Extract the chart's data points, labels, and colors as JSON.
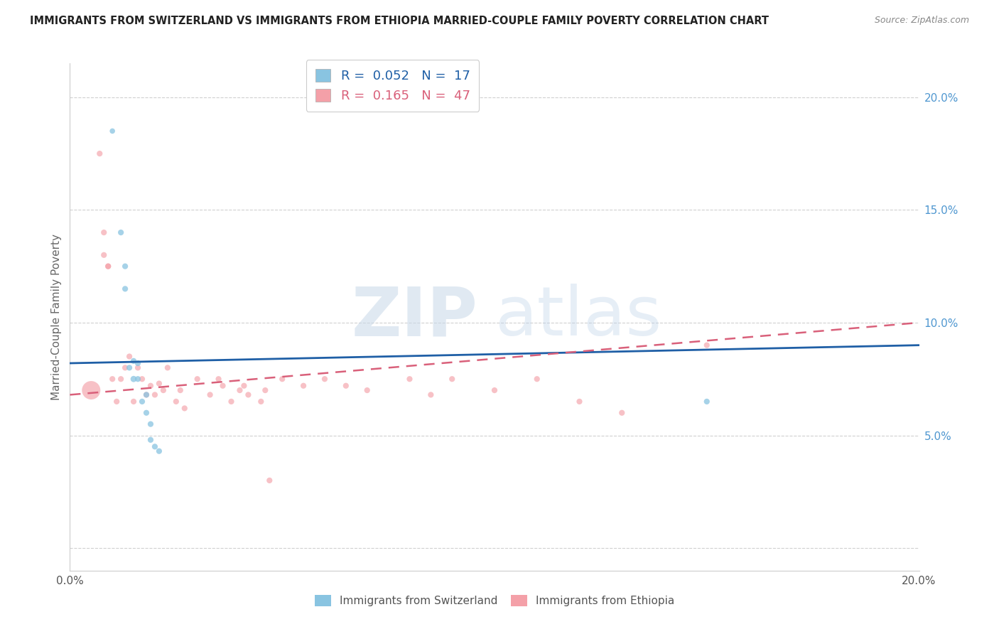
{
  "title": "IMMIGRANTS FROM SWITZERLAND VS IMMIGRANTS FROM ETHIOPIA MARRIED-COUPLE FAMILY POVERTY CORRELATION CHART",
  "source": "Source: ZipAtlas.com",
  "ylabel": "Married-Couple Family Poverty",
  "xlim": [
    0.0,
    0.2
  ],
  "ylim": [
    -0.01,
    0.215
  ],
  "color_swiss": "#89c4e1",
  "color_eth": "#f4a0a8",
  "color_swiss_line": "#1f5fa6",
  "color_eth_line": "#d9607a",
  "legend_swiss_R": "0.052",
  "legend_swiss_N": "17",
  "legend_eth_R": "0.165",
  "legend_eth_N": "47",
  "watermark_zip": "ZIP",
  "watermark_atlas": "atlas",
  "background_color": "#ffffff",
  "swiss_x": [
    0.01,
    0.012,
    0.013,
    0.013,
    0.014,
    0.015,
    0.015,
    0.016,
    0.016,
    0.017,
    0.018,
    0.018,
    0.019,
    0.019,
    0.02,
    0.021,
    0.15
  ],
  "swiss_y": [
    0.185,
    0.14,
    0.125,
    0.115,
    0.08,
    0.083,
    0.075,
    0.075,
    0.082,
    0.065,
    0.068,
    0.06,
    0.055,
    0.048,
    0.045,
    0.043,
    0.065
  ],
  "swiss_size": [
    30,
    35,
    35,
    35,
    35,
    35,
    40,
    35,
    35,
    35,
    35,
    35,
    35,
    35,
    35,
    35,
    35
  ],
  "eth_x": [
    0.005,
    0.007,
    0.008,
    0.008,
    0.009,
    0.009,
    0.01,
    0.011,
    0.012,
    0.013,
    0.014,
    0.015,
    0.016,
    0.017,
    0.018,
    0.019,
    0.02,
    0.021,
    0.022,
    0.023,
    0.025,
    0.026,
    0.027,
    0.03,
    0.033,
    0.035,
    0.036,
    0.038,
    0.04,
    0.041,
    0.042,
    0.045,
    0.046,
    0.047,
    0.05,
    0.055,
    0.06,
    0.065,
    0.07,
    0.08,
    0.085,
    0.09,
    0.1,
    0.11,
    0.12,
    0.13,
    0.15
  ],
  "eth_y": [
    0.07,
    0.175,
    0.14,
    0.13,
    0.125,
    0.125,
    0.075,
    0.065,
    0.075,
    0.08,
    0.085,
    0.065,
    0.08,
    0.075,
    0.068,
    0.072,
    0.068,
    0.073,
    0.07,
    0.08,
    0.065,
    0.07,
    0.062,
    0.075,
    0.068,
    0.075,
    0.072,
    0.065,
    0.07,
    0.072,
    0.068,
    0.065,
    0.07,
    0.03,
    0.075,
    0.072,
    0.075,
    0.072,
    0.07,
    0.075,
    0.068,
    0.075,
    0.07,
    0.075,
    0.065,
    0.06,
    0.09
  ],
  "eth_size": [
    350,
    35,
    35,
    35,
    35,
    35,
    35,
    35,
    35,
    35,
    35,
    35,
    35,
    35,
    35,
    35,
    35,
    35,
    35,
    35,
    35,
    35,
    35,
    35,
    35,
    35,
    35,
    35,
    35,
    35,
    35,
    35,
    35,
    35,
    35,
    35,
    35,
    35,
    35,
    35,
    35,
    35,
    35,
    35,
    35,
    35,
    35
  ],
  "swiss_line_y0": 0.082,
  "swiss_line_y1": 0.09,
  "eth_line_y0": 0.068,
  "eth_line_y1": 0.1
}
